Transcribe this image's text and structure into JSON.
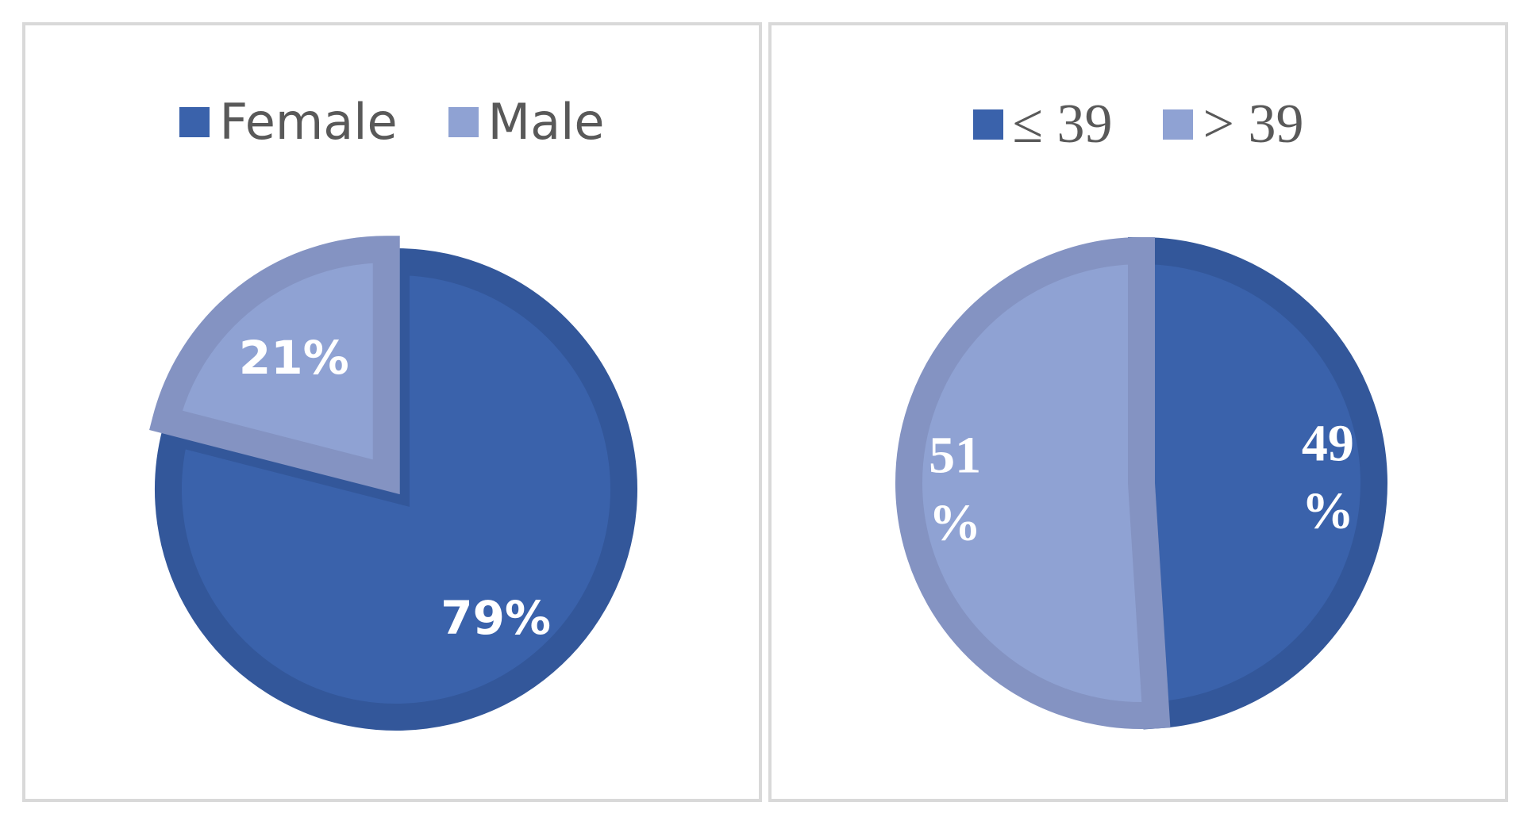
{
  "chart_data": [
    {
      "type": "pie",
      "title": "",
      "categories": [
        "Female",
        "Male"
      ],
      "values": [
        79,
        21
      ],
      "data_labels": [
        "79%",
        "21%"
      ],
      "colors": [
        "#3A62AB",
        "#8FA2D3"
      ],
      "border_colors": [
        "#33579A",
        "#8493C2"
      ],
      "legend": "top"
    },
    {
      "type": "pie",
      "title": "",
      "categories": [
        "≤ 39",
        "> 39"
      ],
      "values": [
        49,
        51
      ],
      "data_labels": [
        [
          "49",
          "%"
        ],
        [
          "51",
          "%"
        ]
      ],
      "colors": [
        "#3A62AB",
        "#8FA2D3"
      ],
      "border_colors": [
        "#33579A",
        "#8493C2"
      ],
      "legend": "top"
    }
  ]
}
